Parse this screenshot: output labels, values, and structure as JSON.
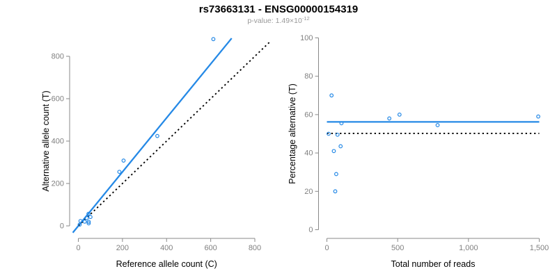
{
  "header": {
    "title": "rs73663131 - ENSG00000154319",
    "p_value": {
      "prefix": "p-value: ",
      "mantissa": "1.49",
      "times_base": "×10",
      "exponent": "-12"
    }
  },
  "colors": {
    "series_blue": "#2589e6",
    "reference_line": "#000000",
    "axis_line": "#898989",
    "tick_label": "#808080",
    "axis_title": "#000000",
    "title": "#000000",
    "subtitle": "#999999",
    "background": "#ffffff"
  },
  "chart_data": [
    {
      "type": "scatter",
      "name": "allele-count-scatter",
      "xlabel": "Reference allele count (C)",
      "ylabel": "Alternative allele count (T)",
      "xlim": [
        0,
        800
      ],
      "ylim": [
        0,
        800
      ],
      "xticks": [
        0,
        200,
        400,
        600,
        800
      ],
      "xtick_labels": [
        "0",
        "200",
        "400",
        "600",
        "800"
      ],
      "yticks": [
        0,
        200,
        400,
        600,
        800
      ],
      "ytick_labels": [
        "0",
        "200",
        "400",
        "600",
        "800"
      ],
      "grid": false,
      "legend": null,
      "points": [
        [
          6,
          6
        ],
        [
          10,
          23
        ],
        [
          29,
          20
        ],
        [
          38,
          37
        ],
        [
          46,
          57
        ],
        [
          47,
          12
        ],
        [
          47,
          19
        ],
        [
          55,
          42
        ],
        [
          186,
          255
        ],
        [
          205,
          308
        ],
        [
          358,
          424
        ],
        [
          612,
          881
        ]
      ],
      "lines": [
        {
          "name": "fit-line",
          "style": "solid",
          "color": "series_blue",
          "from": [
            -25,
            -32
          ],
          "to": [
            695,
            885
          ]
        },
        {
          "name": "identity-line",
          "style": "dotted",
          "color": "reference_line",
          "from": [
            0,
            0
          ],
          "to": [
            868,
            868
          ]
        }
      ]
    },
    {
      "type": "scatter",
      "name": "percentage-vs-reads-scatter",
      "xlabel": "Total number of reads",
      "ylabel": "Percentage alternative (T)",
      "xlim": [
        0,
        1500
      ],
      "ylim": [
        0,
        100
      ],
      "xticks": [
        0,
        500,
        1000,
        1500
      ],
      "xtick_labels": [
        "0",
        "500",
        "1,000",
        "1,500"
      ],
      "yticks": [
        0,
        20,
        40,
        60,
        80,
        100
      ],
      "ytick_labels": [
        "0",
        "20",
        "40",
        "60",
        "80",
        "100"
      ],
      "grid": false,
      "legend": null,
      "points": [
        [
          12,
          50
        ],
        [
          33,
          70
        ],
        [
          49,
          41
        ],
        [
          59,
          20
        ],
        [
          66,
          29
        ],
        [
          75,
          49.5
        ],
        [
          97,
          43.5
        ],
        [
          103,
          55.5
        ],
        [
          441,
          58
        ],
        [
          513,
          60
        ],
        [
          782,
          54.5
        ],
        [
          1493,
          59
        ]
      ],
      "lines": [
        {
          "name": "mean-percentage-line",
          "style": "solid",
          "color": "series_blue",
          "y": 56.2
        },
        {
          "name": "fifty-percent-line",
          "style": "dotted",
          "color": "reference_line",
          "y": 50.2
        }
      ]
    }
  ]
}
